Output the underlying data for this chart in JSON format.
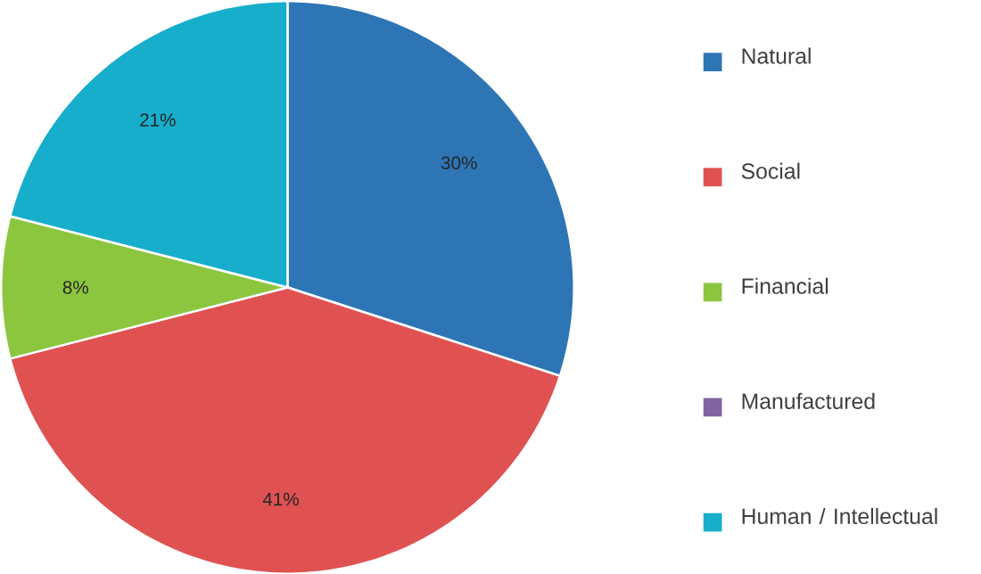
{
  "chart_data": {
    "type": "pie",
    "categories": [
      "Natural",
      "Social",
      "Financial",
      "Manufactured",
      "Human / Intellectual"
    ],
    "values": [
      30,
      41,
      8,
      0,
      21
    ],
    "value_labels": [
      "30%",
      "41%",
      "8%",
      null,
      "21%"
    ],
    "colors": [
      "#2e75b6",
      "#e05252",
      "#8cc63f",
      "#8064a2",
      "#17aecb"
    ],
    "legend": "right"
  }
}
